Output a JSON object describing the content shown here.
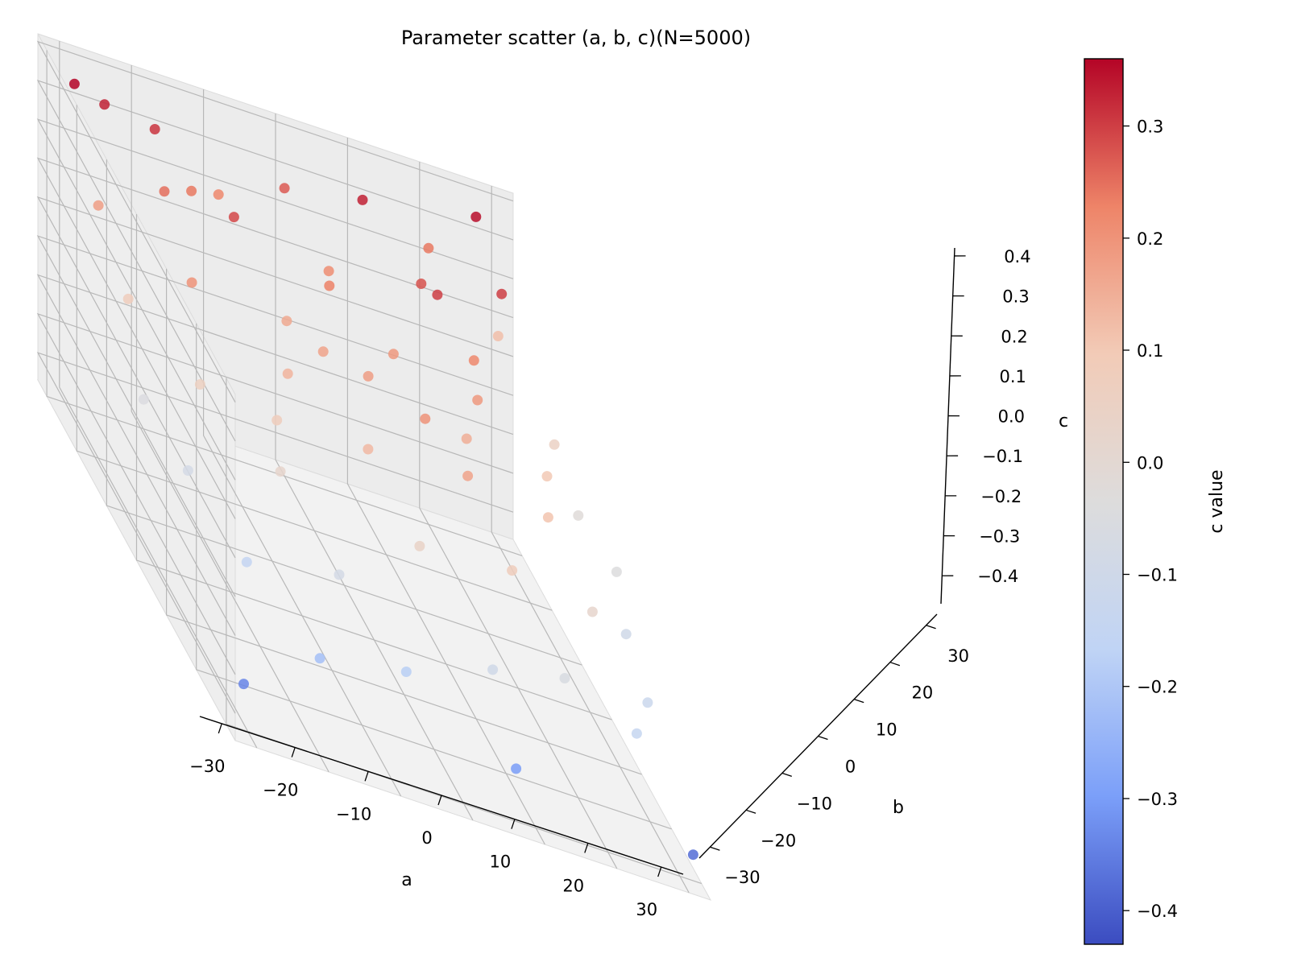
{
  "chart_data": {
    "type": "scatter",
    "projection": "3d",
    "title": "Parameter scatter (a, b, c)(N=5000)",
    "xlabel": "a",
    "ylabel": "b",
    "zlabel": "c",
    "colorbar_label": "c value",
    "colormap": "coolwarm",
    "colormap_stops": [
      "#3b4cc0",
      "#7b9ff9",
      "#c0d4f5",
      "#dddcdc",
      "#f2cbb7",
      "#ee8468",
      "#b40426"
    ],
    "xlim": [
      -33,
      33
    ],
    "ylim": [
      -33,
      33
    ],
    "zlim": [
      -0.47,
      0.42
    ],
    "clim": [
      -0.43,
      0.36
    ],
    "xticks": [
      "−30",
      "−20",
      "−10",
      "0",
      "10",
      "20",
      "30"
    ],
    "yticks": [
      "−30",
      "−20",
      "−10",
      "0",
      "10",
      "20",
      "30"
    ],
    "zticks": [
      "−0.4",
      "−0.3",
      "−0.2",
      "−0.1",
      "0.0",
      "0.1",
      "0.2",
      "0.3",
      "0.4"
    ],
    "cticks": [
      "−0.4",
      "−0.3",
      "−0.2",
      "−0.1",
      "0.0",
      "0.1",
      "0.2",
      "0.3"
    ],
    "grid": true,
    "points": [
      {
        "a": -30,
        "b": 28,
        "c": 0.38
      },
      {
        "a": -25,
        "b": 30,
        "c": 0.33
      },
      {
        "a": -18,
        "b": 30,
        "c": 0.31
      },
      {
        "a": -10,
        "b": 28,
        "c": 0.22
      },
      {
        "a": 0,
        "b": 30,
        "c": 0.27
      },
      {
        "a": 10,
        "b": 28,
        "c": 0.33
      },
      {
        "a": 20,
        "b": 30,
        "c": 0.24
      },
      {
        "a": 28,
        "b": 26,
        "c": 0.12
      },
      {
        "a": -30,
        "b": 20,
        "c": 0.18
      },
      {
        "a": -20,
        "b": 22,
        "c": 0.25
      },
      {
        "a": -12,
        "b": 18,
        "c": 0.29
      },
      {
        "a": 2,
        "b": 20,
        "c": 0.21
      },
      {
        "a": 14,
        "b": 18,
        "c": 0.28
      },
      {
        "a": 26,
        "b": 20,
        "c": 0.3
      },
      {
        "a": 30,
        "b": 12,
        "c": 0.05
      },
      {
        "a": -30,
        "b": 10,
        "c": 0.08
      },
      {
        "a": -22,
        "b": 8,
        "c": 0.2
      },
      {
        "a": -8,
        "b": 10,
        "c": 0.16
      },
      {
        "a": 6,
        "b": 8,
        "c": 0.19
      },
      {
        "a": 18,
        "b": 10,
        "c": 0.22
      },
      {
        "a": 30,
        "b": 4,
        "c": -0.02
      },
      {
        "a": -32,
        "b": 0,
        "c": -0.05
      },
      {
        "a": -25,
        "b": -2,
        "c": 0.06
      },
      {
        "a": -12,
        "b": 0,
        "c": 0.14
      },
      {
        "a": 0,
        "b": 2,
        "c": 0.18
      },
      {
        "a": 12,
        "b": -2,
        "c": 0.15
      },
      {
        "a": 24,
        "b": 0,
        "c": 0.1
      },
      {
        "a": 32,
        "b": -4,
        "c": -0.04
      },
      {
        "a": -30,
        "b": -10,
        "c": -0.08
      },
      {
        "a": -18,
        "b": -12,
        "c": 0.02
      },
      {
        "a": -5,
        "b": -10,
        "c": 0.13
      },
      {
        "a": 8,
        "b": -12,
        "c": 0.17
      },
      {
        "a": 20,
        "b": -10,
        "c": 0.11
      },
      {
        "a": 30,
        "b": -12,
        "c": -0.1
      },
      {
        "a": -26,
        "b": -20,
        "c": -0.15
      },
      {
        "a": -14,
        "b": -22,
        "c": -0.08
      },
      {
        "a": -2,
        "b": -20,
        "c": 0.04
      },
      {
        "a": 10,
        "b": -22,
        "c": 0.08
      },
      {
        "a": 22,
        "b": -20,
        "c": 0.02
      },
      {
        "a": 28,
        "b": -24,
        "c": -0.12
      },
      {
        "a": -20,
        "b": -30,
        "c": -0.22
      },
      {
        "a": -8,
        "b": -30,
        "c": -0.18
      },
      {
        "a": 4,
        "b": -30,
        "c": -0.1
      },
      {
        "a": 14,
        "b": -30,
        "c": -0.06
      },
      {
        "a": 24,
        "b": -30,
        "c": -0.14
      },
      {
        "a": 31,
        "b": -32,
        "c": -0.38
      },
      {
        "a": 6,
        "b": -33,
        "c": -0.3
      },
      {
        "a": 27,
        "b": 31,
        "c": 0.35
      },
      {
        "a": -31,
        "b": -31,
        "c": -0.34
      },
      {
        "a": 15,
        "b": 15,
        "c": 0.3
      },
      {
        "a": -15,
        "b": 25,
        "c": 0.24
      },
      {
        "a": 0,
        "b": 15,
        "c": 0.23
      },
      {
        "a": 5,
        "b": -5,
        "c": 0.2
      },
      {
        "a": -5,
        "b": 5,
        "c": 0.17
      },
      {
        "a": 16,
        "b": 4,
        "c": 0.19
      },
      {
        "a": -16,
        "b": -6,
        "c": 0.08
      }
    ]
  }
}
